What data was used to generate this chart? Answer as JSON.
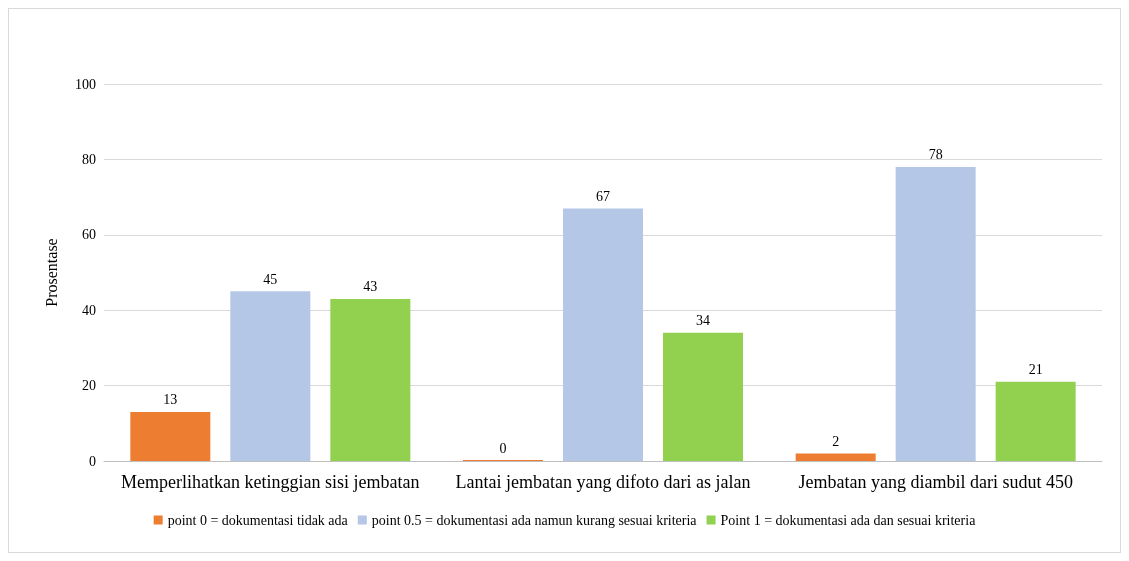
{
  "chart_data": {
    "type": "bar",
    "ylabel": "Prosentase",
    "categories": [
      "Memperlihatkan ketinggian sisi jembatan",
      "Lantai jembatan yang difoto dari as jalan",
      "Jembatan yang diambil dari sudut 450"
    ],
    "series": [
      {
        "name": "point 0 = dokumentasi tidak ada",
        "color": "#ed7d31",
        "values": [
          13,
          0,
          2
        ]
      },
      {
        "name": "point 0.5 = dokumentasi ada namun kurang sesuai kriteria",
        "color": "#b4c7e7",
        "values": [
          45,
          67,
          78
        ]
      },
      {
        "name": "Point 1 = dokumentasi ada dan sesuai kriteria",
        "color": "#92d050",
        "values": [
          43,
          34,
          21
        ]
      }
    ],
    "ylim": [
      0,
      100
    ],
    "yticks": [
      0,
      20,
      40,
      60,
      80,
      100
    ],
    "grid": "y",
    "legend": "bottom",
    "data_labels": true
  }
}
